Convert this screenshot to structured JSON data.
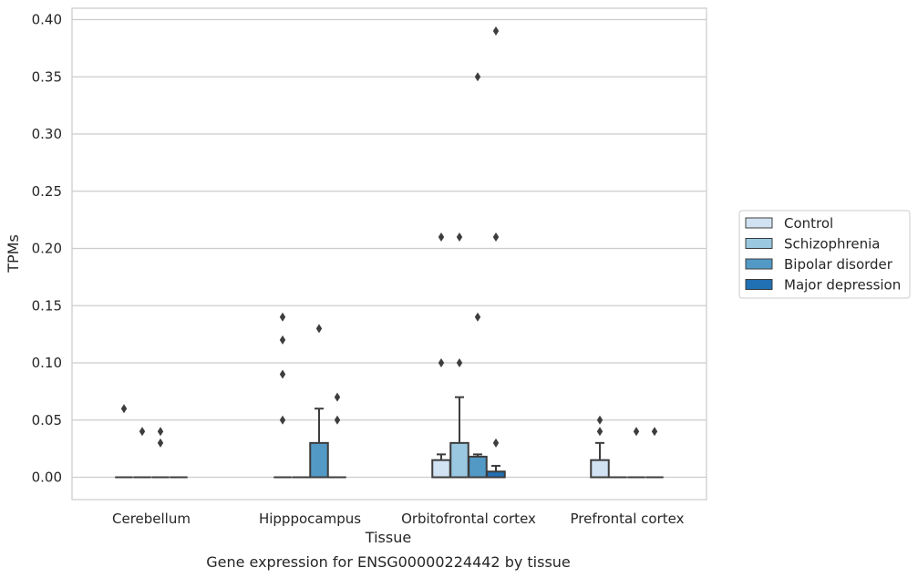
{
  "chart_data": {
    "type": "box",
    "title": "",
    "caption": "Gene expression for ENSG00000224442 by tissue",
    "xlabel": "Tissue",
    "ylabel": "TPMs",
    "ylim": [
      -0.019,
      0.41
    ],
    "yticks": [
      0.0,
      0.05,
      0.1,
      0.15,
      0.2,
      0.25,
      0.3,
      0.35,
      0.4
    ],
    "ytick_labels": [
      "0.00",
      "0.05",
      "0.10",
      "0.15",
      "0.20",
      "0.25",
      "0.30",
      "0.35",
      "0.40"
    ],
    "grid": true,
    "legend_position": "right",
    "categories": [
      "Cerebellum",
      "Hipppocampus",
      "Orbitofrontal cortex",
      "Prefrontal cortex"
    ],
    "series": [
      {
        "name": "Control",
        "color": "#d1e2f2",
        "boxes": [
          {
            "q1": 0,
            "median": 0,
            "q3": 0,
            "whislo": 0,
            "whishi": 0,
            "fliers": [
              0.06
            ]
          },
          {
            "q1": 0,
            "median": 0,
            "q3": 0,
            "whislo": 0,
            "whishi": 0,
            "fliers": [
              0.14,
              0.12,
              0.09,
              0.05
            ]
          },
          {
            "q1": 0,
            "median": 0,
            "q3": 0.015,
            "whislo": 0,
            "whishi": 0.02,
            "fliers": [
              0.21,
              0.1
            ]
          },
          {
            "q1": 0,
            "median": 0,
            "q3": 0.015,
            "whislo": 0,
            "whishi": 0.03,
            "fliers": [
              0.05,
              0.04
            ]
          }
        ]
      },
      {
        "name": "Schizophrenia",
        "color": "#9ac8e0",
        "boxes": [
          {
            "q1": 0,
            "median": 0,
            "q3": 0,
            "whislo": 0,
            "whishi": 0,
            "fliers": [
              0.04
            ]
          },
          {
            "q1": 0,
            "median": 0,
            "q3": 0,
            "whislo": 0,
            "whishi": 0,
            "fliers": []
          },
          {
            "q1": 0,
            "median": 0,
            "q3": 0.03,
            "whislo": 0,
            "whishi": 0.07,
            "fliers": [
              0.21,
              0.1
            ]
          },
          {
            "q1": 0,
            "median": 0,
            "q3": 0,
            "whislo": 0,
            "whishi": 0,
            "fliers": []
          }
        ]
      },
      {
        "name": "Bipolar disorder",
        "color": "#5399c6",
        "boxes": [
          {
            "q1": 0,
            "median": 0,
            "q3": 0,
            "whislo": 0,
            "whishi": 0,
            "fliers": [
              0.04,
              0.03
            ]
          },
          {
            "q1": 0,
            "median": 0,
            "q3": 0.03,
            "whislo": 0,
            "whishi": 0.06,
            "fliers": [
              0.13
            ]
          },
          {
            "q1": 0,
            "median": 0,
            "q3": 0.018,
            "whislo": 0,
            "whishi": 0.02,
            "fliers": [
              0.35,
              0.14
            ]
          },
          {
            "q1": 0,
            "median": 0,
            "q3": 0,
            "whislo": 0,
            "whishi": 0,
            "fliers": [
              0.04
            ]
          }
        ]
      },
      {
        "name": "Major depression",
        "color": "#2070b4",
        "boxes": [
          {
            "q1": 0,
            "median": 0,
            "q3": 0,
            "whislo": 0,
            "whishi": 0,
            "fliers": []
          },
          {
            "q1": 0,
            "median": 0,
            "q3": 0,
            "whislo": 0,
            "whishi": 0,
            "fliers": [
              0.07,
              0.05
            ]
          },
          {
            "q1": 0,
            "median": 0,
            "q3": 0.005,
            "whislo": 0,
            "whishi": 0.01,
            "fliers": [
              0.39,
              0.21,
              0.03
            ]
          },
          {
            "q1": 0,
            "median": 0,
            "q3": 0,
            "whislo": 0,
            "whishi": 0,
            "fliers": [
              0.04
            ]
          }
        ]
      }
    ]
  }
}
